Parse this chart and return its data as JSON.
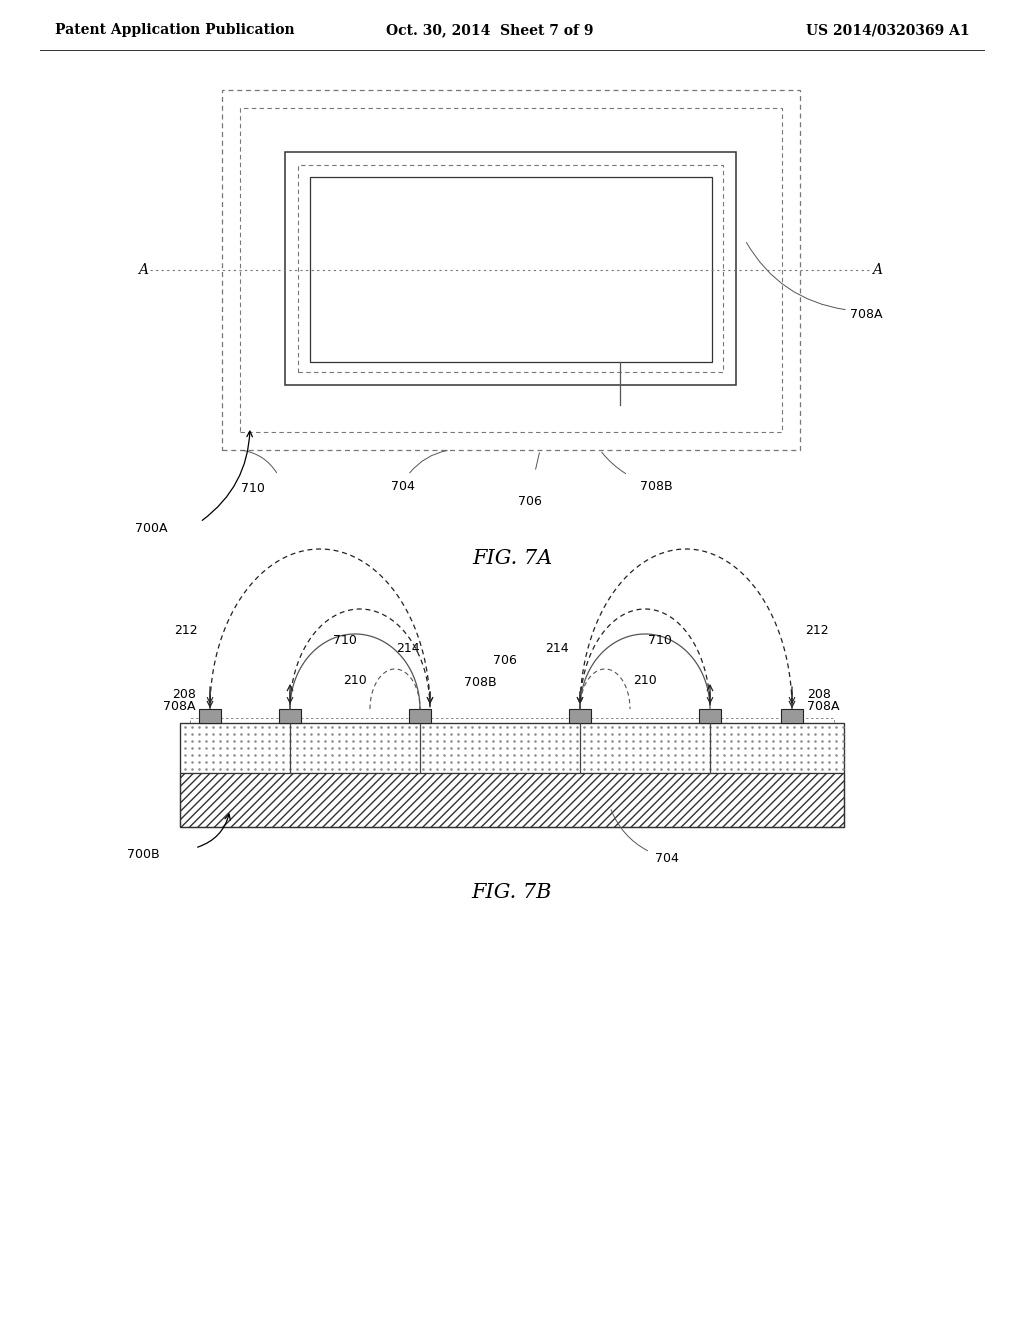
{
  "background_color": "#ffffff",
  "header_left": "Patent Application Publication",
  "header_center": "Oct. 30, 2014  Sheet 7 of 9",
  "header_right": "US 2014/0320369 A1",
  "fig7a_label": "FIG. 7A",
  "fig7b_label": "FIG. 7B",
  "text_color": "#000000",
  "label_fontsize": 9,
  "header_fontsize": 10,
  "fig_label_fontsize": 15
}
